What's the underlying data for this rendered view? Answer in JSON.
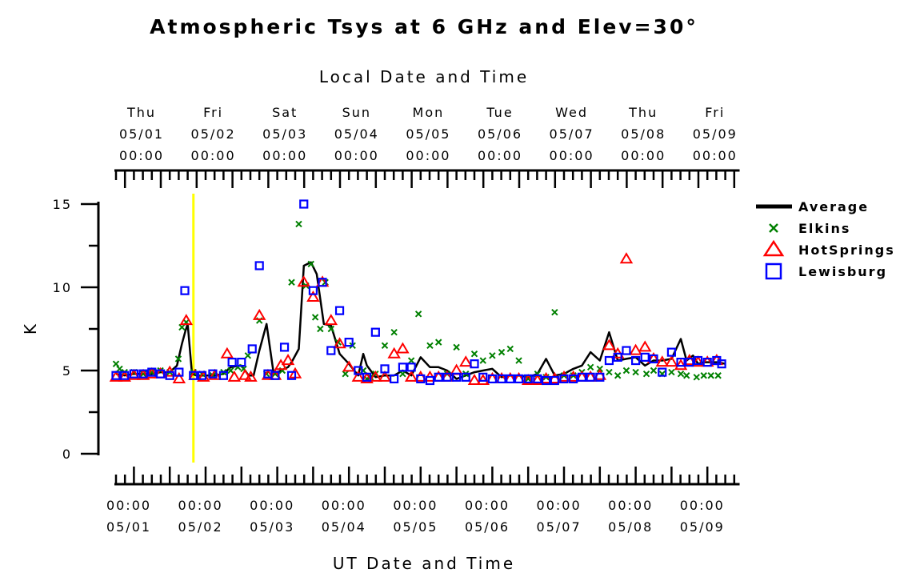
{
  "chart_data": {
    "type": "scatter",
    "title": "Atmospheric Tsys at 6 GHz and Elev=30°",
    "xlabel": "UT Date and Time",
    "xlabel_top": "Local Date and Time",
    "ylabel": "K",
    "ylim": [
      0,
      15
    ],
    "yticks": [
      0,
      5,
      10,
      15
    ],
    "xlim": [
      "05/01 00:00",
      "05/09 12:00"
    ],
    "bottom_ticks": [
      {
        "time": "00:00",
        "date": "05/01"
      },
      {
        "time": "00:00",
        "date": "05/02"
      },
      {
        "time": "00:00",
        "date": "05/03"
      },
      {
        "time": "00:00",
        "date": "05/04"
      },
      {
        "time": "00:00",
        "date": "05/05"
      },
      {
        "time": "00:00",
        "date": "05/06"
      },
      {
        "time": "00:00",
        "date": "05/07"
      },
      {
        "time": "00:00",
        "date": "05/08"
      },
      {
        "time": "00:00",
        "date": "05/09"
      }
    ],
    "top_ticks": [
      {
        "day": "Thu",
        "date": "05/01",
        "time": "00:00"
      },
      {
        "day": "Fri",
        "date": "05/02",
        "time": "00:00"
      },
      {
        "day": "Sat",
        "date": "05/03",
        "time": "00:00"
      },
      {
        "day": "Sun",
        "date": "05/04",
        "time": "00:00"
      },
      {
        "day": "Mon",
        "date": "05/05",
        "time": "00:00"
      },
      {
        "day": "Tue",
        "date": "05/06",
        "time": "00:00"
      },
      {
        "day": "Wed",
        "date": "05/07",
        "time": "00:00"
      },
      {
        "day": "Thu",
        "date": "05/08",
        "time": "00:00"
      },
      {
        "day": "Fri",
        "date": "05/09",
        "time": "00:00"
      }
    ],
    "marker_line": {
      "x": 1.08,
      "color": "#ffff00"
    },
    "series": [
      {
        "name": "Average",
        "kind": "line",
        "color": "#000000",
        "x": [
          0,
          0.12,
          0.25,
          0.38,
          0.5,
          0.62,
          0.75,
          0.85,
          0.92,
          0.97,
          1.0,
          1.06,
          1.12,
          1.25,
          1.38,
          1.5,
          1.6,
          1.75,
          1.85,
          1.92,
          2.0,
          2.1,
          2.2,
          2.3,
          2.4,
          2.45,
          2.55,
          2.62,
          2.72,
          2.8,
          2.9,
          3.0,
          3.12,
          3.25,
          3.38,
          3.45,
          3.5,
          3.62,
          3.75,
          3.88,
          4.0,
          4.12,
          4.25,
          4.38,
          4.5,
          4.62,
          4.75,
          4.88,
          5.0,
          5.12,
          5.25,
          5.38,
          5.5,
          5.62,
          5.75,
          5.88,
          6.0,
          6.12,
          6.25,
          6.38,
          6.5,
          6.62,
          6.75,
          6.88,
          7.0,
          7.12,
          7.25,
          7.38,
          7.5,
          7.62,
          7.75,
          7.88,
          7.96,
          8.05,
          8.12,
          8.2,
          8.3,
          8.4,
          8.5
        ],
        "y": [
          4.8,
          4.7,
          4.8,
          4.8,
          4.8,
          4.9,
          4.9,
          5.3,
          6.6,
          7.4,
          7.8,
          4.8,
          4.7,
          4.7,
          4.7,
          4.8,
          5.2,
          5.3,
          4.7,
          4.7,
          6.2,
          7.8,
          4.8,
          5.0,
          5.2,
          5.5,
          6.3,
          11.3,
          11.5,
          10.8,
          7.8,
          7.7,
          6.0,
          5.4,
          4.7,
          6.0,
          5.3,
          4.6,
          4.7,
          4.7,
          5.0,
          4.7,
          5.8,
          5.2,
          5.2,
          5.0,
          4.5,
          4.7,
          4.9,
          5.0,
          5.1,
          4.6,
          4.7,
          4.7,
          4.6,
          4.8,
          5.7,
          4.7,
          4.8,
          5.1,
          5.3,
          6.1,
          5.6,
          7.3,
          5.6,
          5.7,
          5.8,
          5.3,
          5.6,
          5.6,
          5.7,
          6.9,
          5.6,
          5.9,
          5.4,
          5.5,
          5.5,
          5.5,
          5.4
        ]
      },
      {
        "name": "Elkins",
        "kind": "x",
        "color": "#008000",
        "x": [
          0,
          0.05,
          0.12,
          0.25,
          0.38,
          0.5,
          0.62,
          0.75,
          0.87,
          0.92,
          0.98,
          1.08,
          1.2,
          1.35,
          1.5,
          1.6,
          1.7,
          1.78,
          1.84,
          2.0,
          2.1,
          2.22,
          2.32,
          2.45,
          2.55,
          2.65,
          2.72,
          2.78,
          2.85,
          2.92,
          3.0,
          3.1,
          3.2,
          3.3,
          3.45,
          3.5,
          3.55,
          3.62,
          3.75,
          3.88,
          4.0,
          4.12,
          4.22,
          4.38,
          4.5,
          4.62,
          4.75,
          4.88,
          5.0,
          5.12,
          5.25,
          5.38,
          5.5,
          5.62,
          5.75,
          5.88,
          6.0,
          6.12,
          6.25,
          6.38,
          6.5,
          6.62,
          6.75,
          6.88,
          7.0,
          7.12,
          7.25,
          7.4,
          7.5,
          7.62,
          7.75,
          7.88,
          7.96,
          8.1,
          8.2,
          8.3,
          8.4
        ],
        "y": [
          5.4,
          5.1,
          4.9,
          4.9,
          4.8,
          4.9,
          5.0,
          4.9,
          5.7,
          7.6,
          7.9,
          4.9,
          4.8,
          4.7,
          4.9,
          5.0,
          5.2,
          5.1,
          5.9,
          8.0,
          4.8,
          4.8,
          5.0,
          10.3,
          13.8,
          10.1,
          11.4,
          8.2,
          7.5,
          10.3,
          7.5,
          6.7,
          4.8,
          6.5,
          5.0,
          4.5,
          4.6,
          4.8,
          6.5,
          7.3,
          4.8,
          5.6,
          8.4,
          6.5,
          6.7,
          4.8,
          6.4,
          4.8,
          6.0,
          5.6,
          5.9,
          6.1,
          6.3,
          5.6,
          4.5,
          4.8,
          4.6,
          8.5,
          4.7,
          4.7,
          4.9,
          5.2,
          5.1,
          4.9,
          4.7,
          5.0,
          4.9,
          4.8,
          5.0,
          4.8,
          4.9,
          4.8,
          4.7,
          4.6,
          4.7,
          4.7,
          4.7
        ]
      },
      {
        "name": "HotSprings",
        "kind": "triangle",
        "color": "#ff0000",
        "x": [
          0,
          0.12,
          0.25,
          0.38,
          0.5,
          0.62,
          0.75,
          0.88,
          0.98,
          1.1,
          1.22,
          1.38,
          1.55,
          1.65,
          1.8,
          1.88,
          2.0,
          2.12,
          2.22,
          2.3,
          2.4,
          2.5,
          2.62,
          2.75,
          2.88,
          3.0,
          3.12,
          3.25,
          3.38,
          3.5,
          3.62,
          3.75,
          3.88,
          4.0,
          4.12,
          4.25,
          4.38,
          4.5,
          4.62,
          4.75,
          4.88,
          5.0,
          5.12,
          5.25,
          5.38,
          5.5,
          5.62,
          5.75,
          5.88,
          6.0,
          6.12,
          6.25,
          6.38,
          6.5,
          6.62,
          6.75,
          6.88,
          7.0,
          7.12,
          7.25,
          7.38,
          7.5,
          7.62,
          7.75,
          7.88,
          8.0,
          8.12,
          8.25,
          8.38
        ],
        "y": [
          4.6,
          4.6,
          4.7,
          4.7,
          4.8,
          4.8,
          4.9,
          4.5,
          8.0,
          4.7,
          4.6,
          4.7,
          6.0,
          4.6,
          4.7,
          4.6,
          8.3,
          4.7,
          4.7,
          5.3,
          5.6,
          4.8,
          10.3,
          9.4,
          10.3,
          8.0,
          6.6,
          5.2,
          4.6,
          4.5,
          4.6,
          4.6,
          6.0,
          6.3,
          4.6,
          4.6,
          4.6,
          4.6,
          4.6,
          5.0,
          5.5,
          4.4,
          4.4,
          4.5,
          4.5,
          4.5,
          4.5,
          4.4,
          4.4,
          4.5,
          4.5,
          4.6,
          4.6,
          4.6,
          4.6,
          4.7,
          6.5,
          6.0,
          11.7,
          6.2,
          6.4,
          5.7,
          5.5,
          5.5,
          5.3,
          5.6,
          5.5,
          5.5,
          5.6
        ]
      },
      {
        "name": "Lewisburg",
        "kind": "square",
        "color": "#0000ff",
        "x": [
          0,
          0.12,
          0.25,
          0.38,
          0.5,
          0.62,
          0.75,
          0.88,
          0.96,
          1.08,
          1.2,
          1.35,
          1.5,
          1.62,
          1.75,
          1.9,
          2.0,
          2.12,
          2.22,
          2.35,
          2.45,
          2.62,
          2.75,
          2.88,
          3.0,
          3.12,
          3.25,
          3.38,
          3.5,
          3.62,
          3.75,
          3.88,
          4.0,
          4.12,
          4.25,
          4.38,
          4.5,
          4.62,
          4.75,
          4.88,
          5.0,
          5.12,
          5.25,
          5.38,
          5.5,
          5.62,
          5.75,
          5.88,
          6.0,
          6.12,
          6.25,
          6.38,
          6.5,
          6.62,
          6.75,
          6.88,
          7.0,
          7.12,
          7.25,
          7.38,
          7.5,
          7.62,
          7.75,
          7.88,
          8.0,
          8.12,
          8.25,
          8.38,
          8.45
        ],
        "y": [
          4.7,
          4.7,
          4.8,
          4.8,
          4.9,
          4.8,
          4.7,
          4.9,
          9.8,
          4.7,
          4.7,
          4.8,
          4.7,
          5.5,
          5.5,
          6.3,
          11.3,
          4.8,
          4.7,
          6.4,
          4.7,
          15.0,
          9.8,
          10.3,
          6.2,
          8.6,
          6.7,
          5.0,
          4.6,
          7.3,
          5.1,
          4.5,
          5.2,
          5.2,
          4.5,
          4.4,
          4.6,
          4.6,
          4.6,
          4.6,
          5.4,
          4.6,
          4.5,
          4.5,
          4.5,
          4.5,
          4.5,
          4.5,
          4.4,
          4.4,
          4.5,
          4.5,
          4.6,
          4.6,
          4.6,
          5.6,
          5.8,
          6.2,
          5.6,
          5.8,
          5.7,
          4.9,
          6.1,
          5.5,
          5.5,
          5.6,
          5.5,
          5.6,
          5.4
        ]
      }
    ]
  }
}
